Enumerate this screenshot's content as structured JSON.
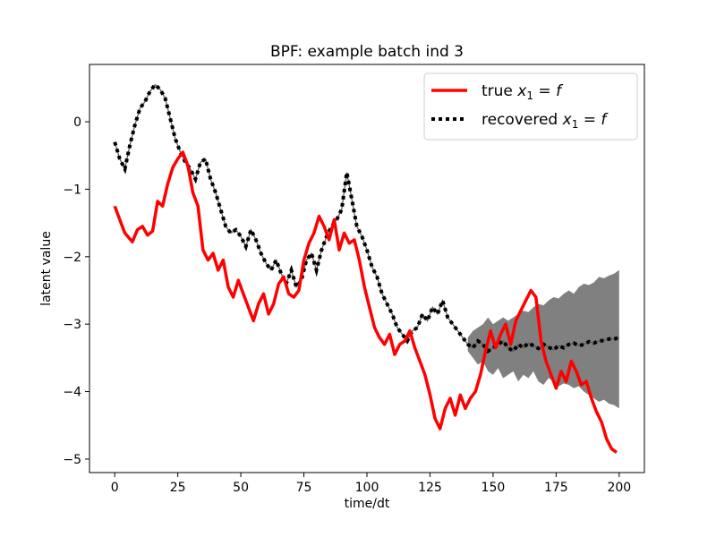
{
  "chart_data": {
    "type": "line",
    "title": "BPF: example batch ind 3",
    "xlabel": "time/dt",
    "ylabel": "latent value",
    "xlim": [
      -10,
      210
    ],
    "ylim": [
      -5.2,
      0.85
    ],
    "xticks": [
      0,
      25,
      50,
      75,
      100,
      125,
      150,
      175,
      200
    ],
    "yticks": [
      0,
      -1,
      -2,
      -3,
      -4,
      -5
    ],
    "ytick_labels": [
      "0",
      "−1",
      "−2",
      "−3",
      "−4",
      "−5"
    ],
    "grid": false,
    "legend": {
      "placement": "top-right",
      "entries": [
        {
          "label_text": "true ",
          "label_math": "x",
          "label_sub": "1",
          "label_rest": " = ",
          "label_math2": "f"
        },
        {
          "label_text": "recovered ",
          "label_math": "x",
          "label_sub": "1",
          "label_rest": " = ",
          "label_math2": "f"
        }
      ]
    },
    "series": [
      {
        "name": "true x1 = f",
        "color": "#ff0000",
        "style": "solid",
        "x": [
          0,
          2,
          4,
          7,
          9,
          11,
          13,
          15,
          17,
          19,
          21,
          23,
          25,
          27,
          29,
          31,
          33,
          35,
          37,
          39,
          41,
          43,
          45,
          47,
          49,
          51,
          53,
          55,
          57,
          59,
          61,
          63,
          65,
          67,
          69,
          71,
          73,
          75,
          77,
          79,
          81,
          83,
          85,
          87,
          89,
          91,
          93,
          95,
          97,
          99,
          101,
          103,
          105,
          107,
          109,
          111,
          113,
          115,
          117,
          119,
          121,
          123,
          125,
          127,
          129,
          131,
          133,
          135,
          137,
          139,
          141,
          143,
          145,
          147,
          149,
          151,
          153,
          155,
          157,
          159,
          161,
          163,
          165,
          167,
          169,
          171,
          173,
          175,
          177,
          179,
          181,
          183,
          185,
          187,
          189,
          191,
          193,
          195,
          197,
          199
        ],
        "y": [
          -1.25,
          -1.45,
          -1.65,
          -1.78,
          -1.6,
          -1.55,
          -1.68,
          -1.62,
          -1.18,
          -1.25,
          -0.92,
          -0.68,
          -0.55,
          -0.45,
          -0.65,
          -1.05,
          -1.25,
          -1.9,
          -2.05,
          -1.95,
          -2.2,
          -2.05,
          -2.45,
          -2.6,
          -2.35,
          -2.55,
          -2.75,
          -2.95,
          -2.7,
          -2.55,
          -2.85,
          -2.7,
          -2.4,
          -2.3,
          -2.55,
          -2.6,
          -2.5,
          -2.05,
          -1.8,
          -1.65,
          -1.4,
          -1.55,
          -1.75,
          -1.45,
          -1.9,
          -1.65,
          -1.8,
          -1.75,
          -2.05,
          -2.45,
          -2.75,
          -3.05,
          -3.2,
          -3.3,
          -3.15,
          -3.45,
          -3.3,
          -3.25,
          -3.1,
          -3.35,
          -3.55,
          -3.75,
          -4.05,
          -4.4,
          -4.55,
          -4.25,
          -4.1,
          -4.35,
          -4.05,
          -4.25,
          -4.1,
          -4.0,
          -3.75,
          -3.4,
          -3.1,
          -3.35,
          -3.15,
          -3.0,
          -3.3,
          -2.95,
          -2.8,
          -2.65,
          -2.5,
          -2.6,
          -3.25,
          -3.55,
          -3.75,
          -3.95,
          -3.7,
          -3.85,
          -3.55,
          -3.7,
          -3.9,
          -3.85,
          -4.1,
          -4.3,
          -4.45,
          -4.7,
          -4.85,
          -4.9
        ]
      },
      {
        "name": "recovered x1 = f",
        "color": "#000000",
        "style": "dotted",
        "x": [
          0,
          2,
          4,
          6,
          8,
          10,
          12,
          14,
          16,
          18,
          20,
          22,
          24,
          26,
          28,
          30,
          32,
          34,
          36,
          38,
          40,
          42,
          44,
          46,
          48,
          50,
          52,
          54,
          56,
          58,
          60,
          62,
          64,
          66,
          68,
          70,
          72,
          74,
          76,
          78,
          80,
          82,
          84,
          86,
          88,
          90,
          92,
          94,
          96,
          98,
          100,
          102,
          104,
          106,
          108,
          110,
          112,
          114,
          116,
          118,
          120,
          122,
          124,
          126,
          128,
          130,
          132,
          134,
          136,
          138,
          140,
          142,
          144,
          146,
          148,
          150,
          152,
          154,
          156,
          158,
          160,
          162,
          164,
          166,
          168,
          170,
          172,
          174,
          176,
          178,
          180,
          182,
          184,
          186,
          188,
          190,
          192,
          194,
          196,
          198,
          200
        ],
        "y": [
          -0.3,
          -0.55,
          -0.7,
          -0.35,
          -0.05,
          0.2,
          0.3,
          0.45,
          0.55,
          0.48,
          0.35,
          0.05,
          -0.25,
          -0.45,
          -0.6,
          -0.7,
          -0.85,
          -0.6,
          -0.55,
          -0.85,
          -1.05,
          -1.3,
          -1.55,
          -1.65,
          -1.6,
          -1.7,
          -1.85,
          -1.6,
          -1.75,
          -1.95,
          -2.1,
          -2.2,
          -2.05,
          -2.25,
          -2.4,
          -2.2,
          -2.45,
          -2.35,
          -2.05,
          -1.95,
          -2.2,
          -1.9,
          -1.7,
          -1.55,
          -1.45,
          -1.3,
          -0.75,
          -1.15,
          -1.55,
          -1.7,
          -1.9,
          -2.15,
          -2.3,
          -2.55,
          -2.7,
          -2.85,
          -3.05,
          -3.15,
          -3.25,
          -3.1,
          -3.05,
          -2.85,
          -2.95,
          -2.75,
          -2.85,
          -2.65,
          -2.9,
          -3.0,
          -3.1,
          -3.2,
          -3.3,
          -3.35,
          -3.25,
          -3.3,
          -3.4,
          -3.35,
          -3.3,
          -3.25,
          -3.35,
          -3.4,
          -3.3,
          -3.35,
          -3.28,
          -3.32,
          -3.36,
          -3.3,
          -3.34,
          -3.38,
          -3.32,
          -3.35,
          -3.3,
          -3.28,
          -3.32,
          -3.3,
          -3.26,
          -3.28,
          -3.25,
          -3.24,
          -3.22,
          -3.22,
          -3.2
        ]
      }
    ],
    "band": {
      "color": "#808080",
      "x": [
        140,
        142,
        144,
        146,
        148,
        150,
        152,
        154,
        156,
        158,
        160,
        162,
        164,
        166,
        168,
        170,
        172,
        174,
        176,
        178,
        180,
        182,
        184,
        186,
        188,
        190,
        192,
        194,
        196,
        198,
        200
      ],
      "upper": [
        -3.2,
        -3.1,
        -3.05,
        -3.0,
        -2.9,
        -3.0,
        -2.95,
        -2.9,
        -2.95,
        -2.9,
        -2.85,
        -2.8,
        -2.82,
        -2.75,
        -2.7,
        -2.72,
        -2.65,
        -2.6,
        -2.62,
        -2.55,
        -2.5,
        -2.55,
        -2.45,
        -2.4,
        -2.42,
        -2.38,
        -2.3,
        -2.32,
        -2.28,
        -2.25,
        -2.2
      ],
      "lower": [
        -3.4,
        -3.5,
        -3.6,
        -3.55,
        -3.7,
        -3.75,
        -3.65,
        -3.8,
        -3.75,
        -3.7,
        -3.85,
        -3.75,
        -3.8,
        -3.7,
        -3.85,
        -3.9,
        -3.8,
        -3.85,
        -3.92,
        -3.88,
        -3.9,
        -3.95,
        -3.92,
        -4.0,
        -4.05,
        -4.1,
        -4.15,
        -4.12,
        -4.18,
        -4.2,
        -4.25
      ]
    }
  }
}
